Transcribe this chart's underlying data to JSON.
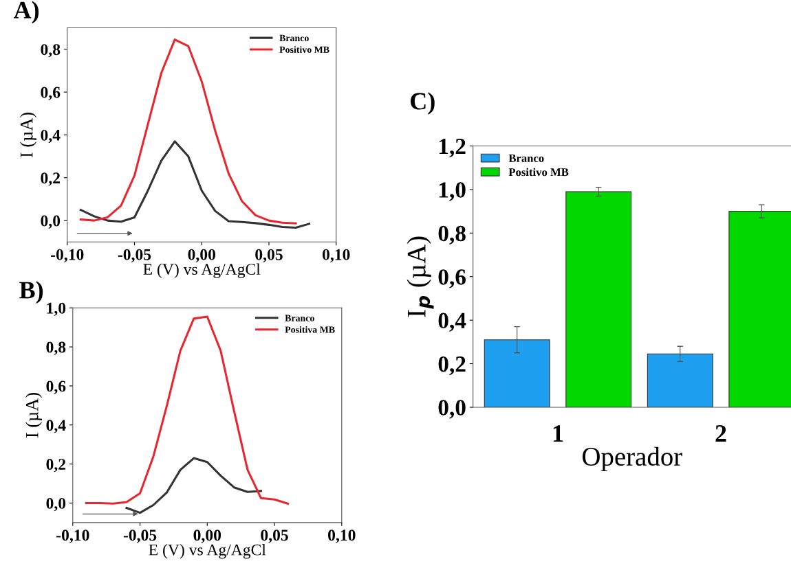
{
  "chart_data": [
    {
      "type": "line",
      "annotations": [
        "A)"
      ],
      "xlabel": "E (V) vs Ag/AgCl",
      "ylabel": "I (µA)",
      "legend": "top right",
      "grid": false,
      "xlim": [
        -0.1,
        0.1
      ],
      "xticks": [
        {
          "value": -0.1,
          "label": "-0,10"
        },
        {
          "value": -0.05,
          "label": "-0,05"
        },
        {
          "value": 0,
          "label": "0,00"
        },
        {
          "value": 0.05,
          "label": "0,05"
        },
        {
          "value": 0.1,
          "label": "0,10"
        }
      ],
      "ylim": [
        -0.1,
        0.9
      ],
      "yticks": [
        {
          "value": 0,
          "label": "0,0"
        },
        {
          "value": 0.2,
          "label": "0,2"
        },
        {
          "value": 0.4,
          "label": "0,4"
        },
        {
          "value": 0.6,
          "label": "0,6"
        },
        {
          "value": 0.8,
          "label": "0,8"
        }
      ],
      "series": [
        {
          "name": "Branco",
          "color": "#333333",
          "x": [
            -0.09,
            -0.08,
            -0.07,
            -0.06,
            -0.05,
            -0.04,
            -0.03,
            -0.02,
            -0.01,
            0.0,
            0.01,
            0.02,
            0.03,
            0.04,
            0.05,
            0.06,
            0.07,
            0.08
          ],
          "values": [
            0.05,
            0.02,
            0.0,
            -0.005,
            0.015,
            0.14,
            0.28,
            0.37,
            0.3,
            0.14,
            0.045,
            -0.003,
            -0.007,
            -0.012,
            -0.02,
            -0.03,
            -0.033,
            -0.015
          ]
        },
        {
          "name": "Positivo MB",
          "color": "#e8262f",
          "x": [
            -0.09,
            -0.08,
            -0.07,
            -0.06,
            -0.05,
            -0.04,
            -0.03,
            -0.02,
            -0.01,
            0.0,
            0.01,
            0.02,
            0.03,
            0.04,
            0.05,
            0.06,
            0.07
          ],
          "values": [
            0.005,
            0.0,
            0.015,
            0.07,
            0.21,
            0.45,
            0.69,
            0.845,
            0.815,
            0.65,
            0.42,
            0.22,
            0.09,
            0.025,
            0.0,
            -0.01,
            -0.013
          ]
        }
      ]
    },
    {
      "type": "line",
      "annotations": [
        "B)"
      ],
      "xlabel": "E (V) vs Ag/AgCl",
      "ylabel": "I (µA)",
      "legend": "top right",
      "grid": false,
      "xlim": [
        -0.1,
        0.1
      ],
      "xticks": [
        {
          "value": -0.1,
          "label": "-0,10"
        },
        {
          "value": -0.05,
          "label": "-0,05"
        },
        {
          "value": 0,
          "label": "0,00"
        },
        {
          "value": 0.05,
          "label": "0,05"
        },
        {
          "value": 0.1,
          "label": "0,10"
        }
      ],
      "ylim": [
        -0.1,
        1.0
      ],
      "yticks": [
        {
          "value": 0,
          "label": "0,0"
        },
        {
          "value": 0.2,
          "label": "0,2"
        },
        {
          "value": 0.4,
          "label": "0,4"
        },
        {
          "value": 0.6,
          "label": "0,6"
        },
        {
          "value": 0.8,
          "label": "0,8"
        },
        {
          "value": 1.0,
          "label": "1,0"
        }
      ],
      "series": [
        {
          "name": "Branco",
          "color": "#333333",
          "x": [
            -0.06,
            -0.05,
            -0.04,
            -0.03,
            -0.02,
            -0.01,
            0.0,
            0.01,
            0.02,
            0.03,
            0.04
          ],
          "values": [
            -0.025,
            -0.05,
            -0.01,
            0.055,
            0.17,
            0.23,
            0.21,
            0.14,
            0.08,
            0.057,
            0.062
          ]
        },
        {
          "name": "Positiva MB",
          "color": "#e8262f",
          "x": [
            -0.09,
            -0.08,
            -0.07,
            -0.06,
            -0.05,
            -0.04,
            -0.03,
            -0.02,
            -0.01,
            0.0,
            0.01,
            0.02,
            0.03,
            0.04,
            0.05,
            0.06
          ],
          "values": [
            0.0,
            0.0,
            -0.003,
            0.005,
            0.05,
            0.24,
            0.5,
            0.78,
            0.945,
            0.955,
            0.78,
            0.47,
            0.17,
            0.025,
            0.018,
            -0.003
          ]
        }
      ]
    },
    {
      "type": "bar",
      "annotations": [
        "C)"
      ],
      "xlabel": "Operador",
      "ylabel": "I$_{p}$ (µA)",
      "legend": "top left",
      "grid": false,
      "categories": [
        "1",
        "2"
      ],
      "ylim": [
        0,
        1.2
      ],
      "yticks": [
        {
          "value": 0,
          "label": "0,0"
        },
        {
          "value": 0.2,
          "label": "0,2"
        },
        {
          "value": 0.4,
          "label": "0,4"
        },
        {
          "value": 0.6,
          "label": "0,6"
        },
        {
          "value": 0.8,
          "label": "0,8"
        },
        {
          "value": 1.0,
          "label": "1,0"
        },
        {
          "value": 1.2,
          "label": "1,2"
        }
      ],
      "series": [
        {
          "name": "Branco",
          "color": "#1e9ff0",
          "values": [
            0.31,
            0.245
          ],
          "errors": [
            0.06,
            0.035
          ]
        },
        {
          "name": "Positivo MB",
          "color": "#00d800",
          "values": [
            0.99,
            0.9
          ],
          "errors": [
            0.02,
            0.03
          ]
        }
      ]
    }
  ]
}
